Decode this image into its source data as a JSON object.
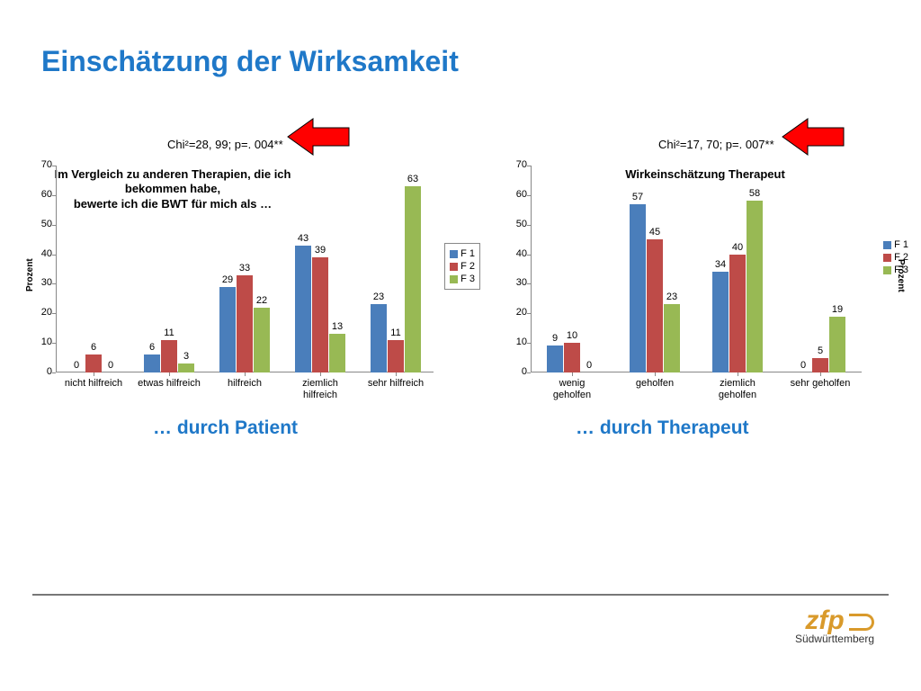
{
  "title": "Einschätzung der Wirksamkeit",
  "title_color": "#1f78c8",
  "colors": {
    "F1": "#4a7ebb",
    "F2": "#be4b48",
    "F3": "#98b954"
  },
  "stat_left": "Chi²=28, 99; p=. 004**",
  "stat_right": "Chi²=17, 70; p=. 007**",
  "arrow": {
    "fill": "#ff0000",
    "stroke": "#000000"
  },
  "chart_left": {
    "title": "Im Vergleich zu anderen Therapien, die ich\nbekommen habe,\nbewerte ich die BWT für mich als …",
    "ylabel": "Prozent",
    "ymax": 70,
    "ytick_step": 10,
    "categories": [
      "nicht hilfreich",
      "etwas hilfreich",
      "hilfreich",
      "ziemlich hilfreich",
      "sehr hilfreich"
    ],
    "series": [
      "F 1",
      "F 2",
      "F 3"
    ],
    "values": {
      "F1": [
        0,
        6,
        29,
        43,
        23
      ],
      "F2": [
        6,
        11,
        33,
        39,
        11
      ],
      "F3": [
        0,
        3,
        22,
        13,
        63
      ]
    },
    "legend_border": true
  },
  "chart_right": {
    "title": "Wirkeinschätzung Therapeut",
    "ylabel": "Prozent",
    "ymax": 70,
    "ytick_step": 10,
    "categories": [
      "wenig geholfen",
      "geholfen",
      "ziemlich geholfen",
      "sehr geholfen"
    ],
    "series": [
      "F 1",
      "F 2",
      "F 3"
    ],
    "values": {
      "F1": [
        9,
        57,
        34,
        0
      ],
      "F2": [
        10,
        45,
        40,
        5
      ],
      "F3": [
        0,
        23,
        58,
        19
      ]
    },
    "legend_border": false
  },
  "sub_left": "… durch Patient",
  "sub_right": "… durch Therapeut",
  "footer": {
    "logo_main": "zfp",
    "logo_sub": "Südwürttemberg",
    "logo_color": "#d99a2b",
    "rule_color": "#777777"
  }
}
